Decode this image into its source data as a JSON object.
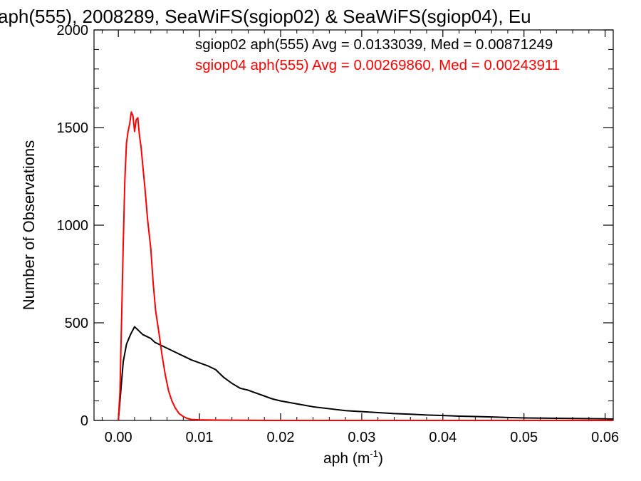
{
  "chart_data": {
    "type": "line",
    "title": "aph(555), 2008289, SeaWiFS(sgiop02) & SeaWiFS(sgiop04), Eu",
    "xlabel": "aph (m",
    "xlabel_sup": "-1",
    "xlabel_close": ")",
    "ylabel": "Number of Observations",
    "xlim": [
      -0.003,
      0.061
    ],
    "ylim": [
      0,
      2000
    ],
    "x_ticks": [
      0.0,
      0.01,
      0.02,
      0.03,
      0.04,
      0.05,
      0.06
    ],
    "x_tick_labels": [
      "0.00",
      "0.01",
      "0.02",
      "0.03",
      "0.04",
      "0.05",
      "0.06"
    ],
    "y_ticks": [
      0,
      500,
      1000,
      1500,
      2000
    ],
    "y_tick_labels": [
      "0",
      "500",
      "1000",
      "1500",
      "2000"
    ],
    "grid": false,
    "legend": "top-right",
    "series": [
      {
        "name": "sgiop02 aph(555) Avg = 0.0133039, Med = 0.00871249",
        "color": "#000000",
        "x": [
          0.0,
          0.0003,
          0.0006,
          0.001,
          0.0015,
          0.002,
          0.0025,
          0.003,
          0.0035,
          0.004,
          0.0045,
          0.005,
          0.0055,
          0.006,
          0.007,
          0.008,
          0.009,
          0.01,
          0.011,
          0.012,
          0.013,
          0.014,
          0.015,
          0.016,
          0.017,
          0.018,
          0.019,
          0.02,
          0.022,
          0.024,
          0.026,
          0.028,
          0.03,
          0.032,
          0.034,
          0.036,
          0.038,
          0.04,
          0.042,
          0.044,
          0.046,
          0.048,
          0.05,
          0.052,
          0.054,
          0.056,
          0.058,
          0.06,
          0.061
        ],
        "values": [
          0,
          150,
          300,
          390,
          440,
          480,
          460,
          440,
          430,
          420,
          400,
          390,
          380,
          370,
          350,
          330,
          310,
          295,
          280,
          260,
          220,
          190,
          165,
          155,
          140,
          125,
          110,
          100,
          85,
          70,
          60,
          50,
          45,
          40,
          35,
          32,
          28,
          25,
          22,
          20,
          18,
          15,
          13,
          12,
          11,
          10,
          9,
          8,
          7
        ]
      },
      {
        "name": "sgiop04 aph(555) Avg = 0.00269860, Med = 0.00243911",
        "color": "#ff0000",
        "x": [
          0.0,
          0.0002,
          0.0004,
          0.0006,
          0.0008,
          0.001,
          0.0012,
          0.0014,
          0.0016,
          0.0018,
          0.002,
          0.0022,
          0.0024,
          0.0026,
          0.0028,
          0.003,
          0.0033,
          0.0036,
          0.004,
          0.0043,
          0.0046,
          0.005,
          0.0054,
          0.0058,
          0.0062,
          0.0066,
          0.007,
          0.0075,
          0.008,
          0.0085,
          0.009,
          0.01,
          0.012,
          0.015,
          0.02,
          0.03,
          0.04,
          0.05,
          0.061
        ],
        "values": [
          0,
          150,
          520,
          900,
          1230,
          1420,
          1480,
          1520,
          1580,
          1560,
          1480,
          1540,
          1550,
          1460,
          1400,
          1310,
          1180,
          1030,
          880,
          700,
          560,
          450,
          330,
          230,
          150,
          100,
          65,
          35,
          20,
          10,
          5,
          3,
          2,
          1,
          0,
          0,
          0,
          0,
          0
        ]
      }
    ]
  }
}
